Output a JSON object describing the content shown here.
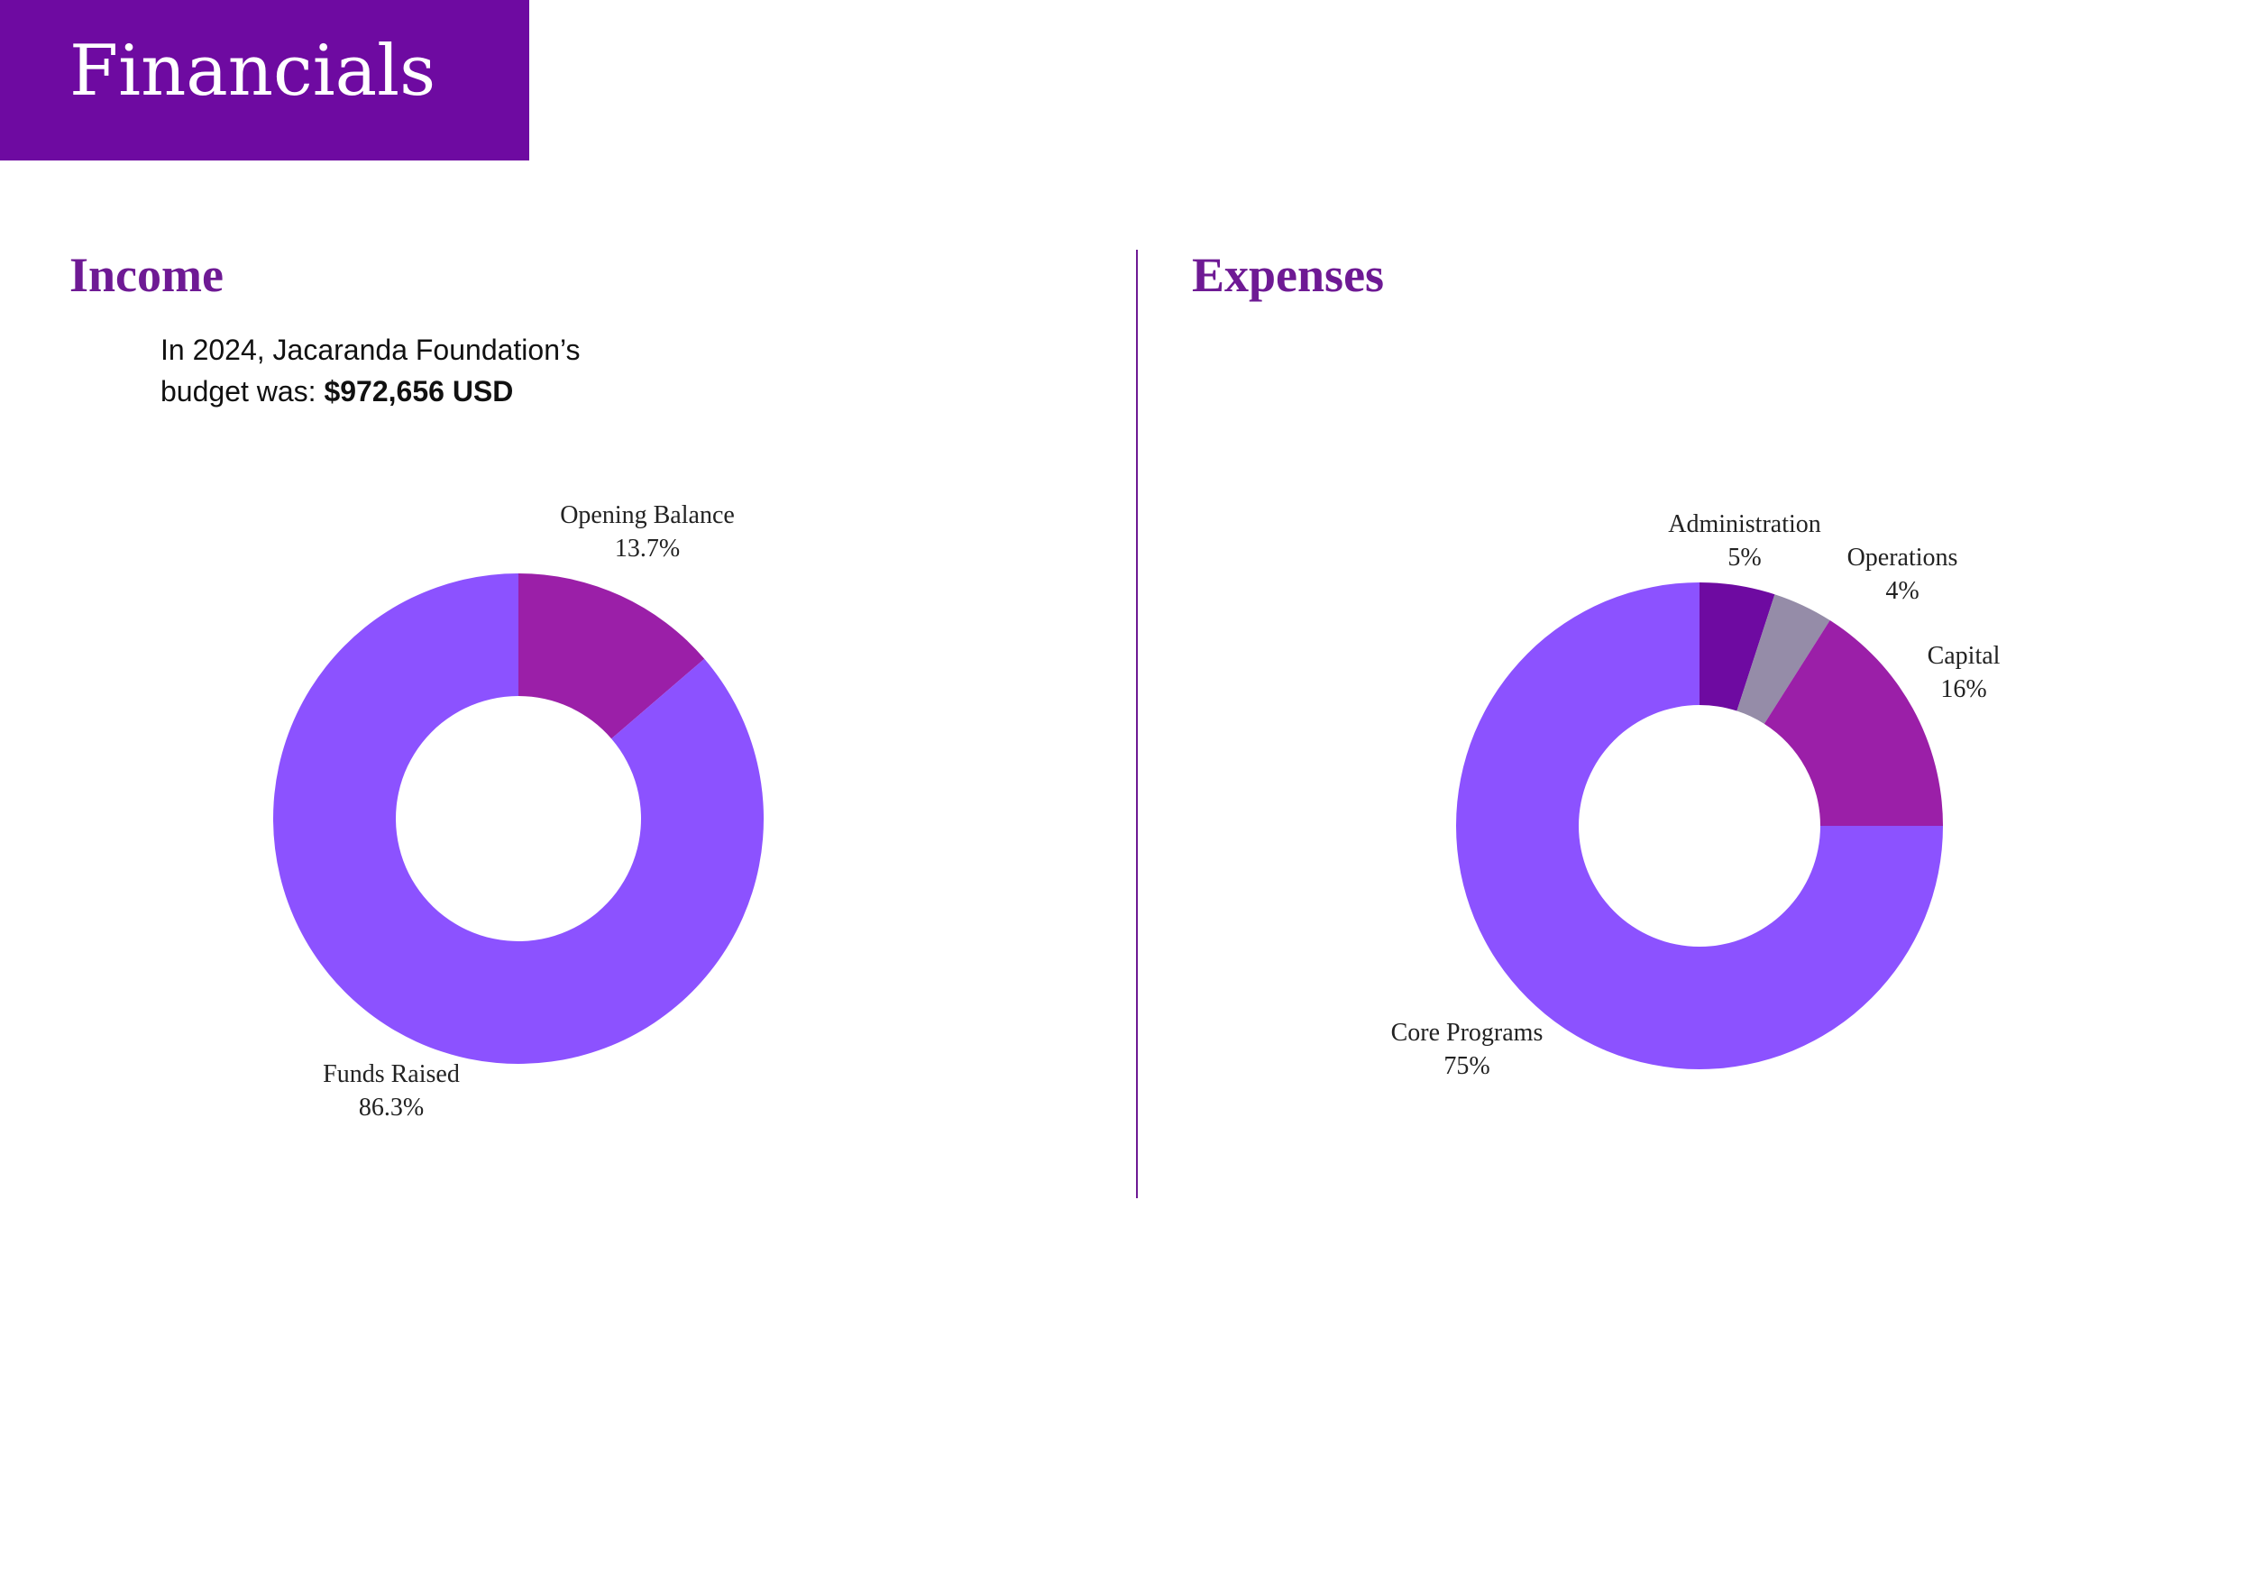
{
  "header": {
    "title": "Financials"
  },
  "income": {
    "heading": "Income",
    "budget_line1": "In 2024, Jacaranda Foundation’s",
    "budget_line2_prefix": "budget was:",
    "budget_amount": "$972,656 USD"
  },
  "expenses": {
    "heading": "Expenses"
  },
  "chart_data": [
    {
      "type": "pie",
      "donut": true,
      "slices": [
        {
          "label": "Opening Balance",
          "value": 13.7,
          "display": "13.7%",
          "color": "#9b1fa8"
        },
        {
          "label": "Funds Raised",
          "value": 86.3,
          "display": "86.3%",
          "color": "#8c52ff"
        }
      ]
    },
    {
      "type": "pie",
      "donut": true,
      "slices": [
        {
          "label": "Administration",
          "value": 5,
          "display": "5%",
          "color": "#6e0aa1"
        },
        {
          "label": "Operations",
          "value": 4,
          "display": "4%",
          "color": "#958ca8"
        },
        {
          "label": "Capital",
          "value": 16,
          "display": "16%",
          "color": "#9b1fa8"
        },
        {
          "label": "Core Programs",
          "value": 75,
          "display": "75%",
          "color": "#8c52ff"
        }
      ]
    }
  ]
}
